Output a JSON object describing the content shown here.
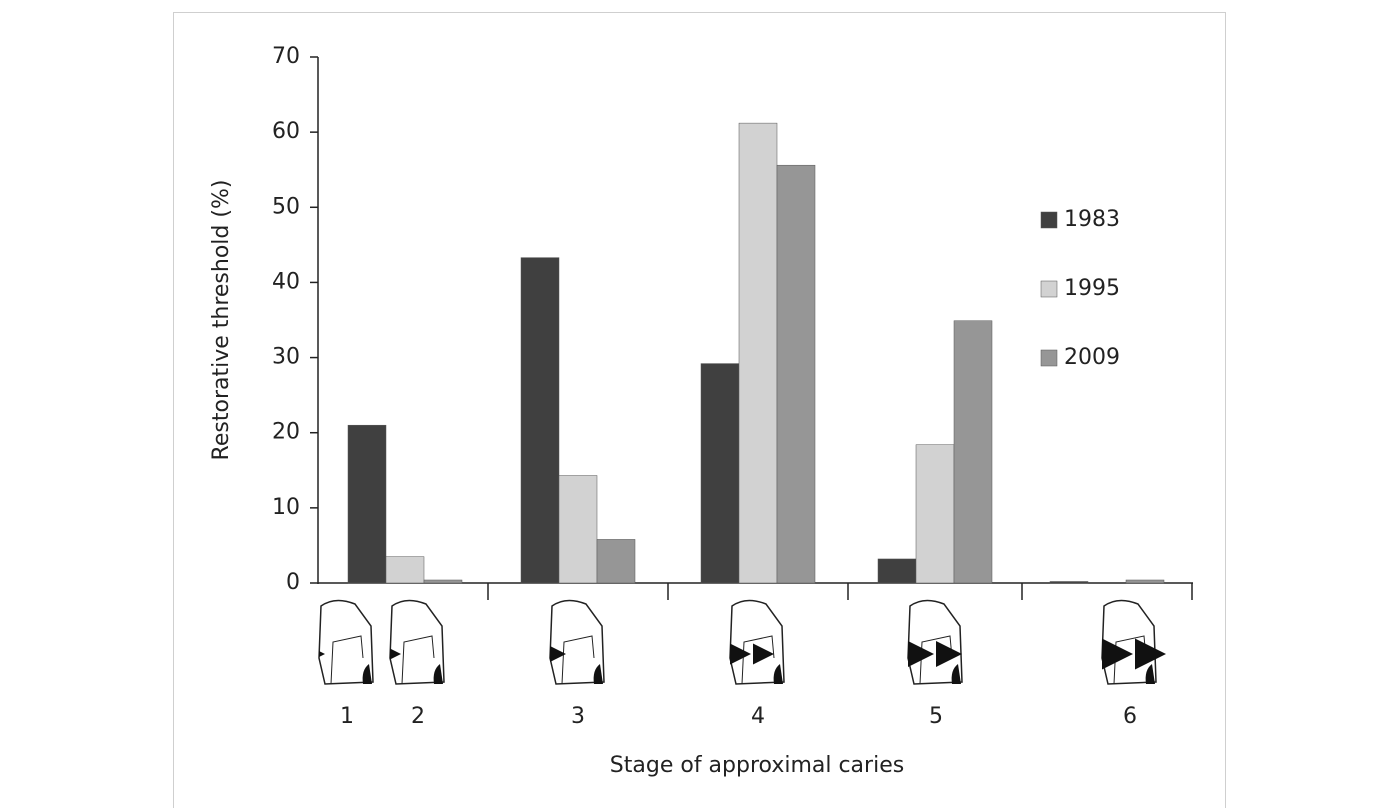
{
  "chart_data": {
    "type": "bar",
    "y_label": "Restorative threshold (%)",
    "x_label": "Stage of approximal caries",
    "categories": [
      [
        "1",
        "2"
      ],
      [
        "3"
      ],
      [
        "4"
      ],
      [
        "5"
      ],
      [
        "6"
      ]
    ],
    "series": [
      {
        "name": "1983",
        "color": "#404040",
        "values": [
          21,
          43.3,
          29.2,
          3.2,
          0.2
        ]
      },
      {
        "name": "1995",
        "color": "#d2d2d2",
        "values": [
          3.5,
          14.3,
          61.2,
          18.4,
          0
        ]
      },
      {
        "name": "2009",
        "color": "#969696",
        "values": [
          0.4,
          5.8,
          55.6,
          34.9,
          0.4
        ]
      }
    ],
    "ylim": [
      0,
      70
    ],
    "yticks": [
      0,
      10,
      20,
      30,
      40,
      50,
      60,
      70
    ]
  }
}
